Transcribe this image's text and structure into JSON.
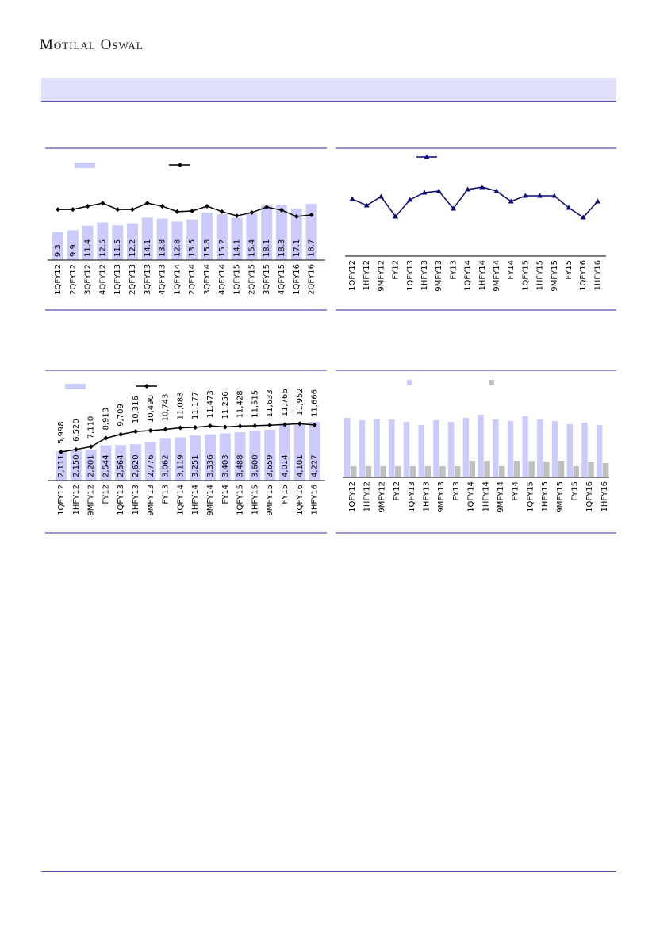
{
  "header": {
    "brand": "Motilal Oswal"
  },
  "colors": {
    "accent": "#5a50b4",
    "bar": "#ccccfc",
    "bar_grey": "#c0c0c0",
    "line_black": "#000000",
    "line_navy": "#0a0a78"
  },
  "chart_data": [
    {
      "type": "bar",
      "categories": [
        "1QFY12",
        "2QFY12",
        "3QFY12",
        "4QFY12",
        "1QFY13",
        "2QFY13",
        "3QFY13",
        "4QFY13",
        "1QFY14",
        "2QFY14",
        "3QFY14",
        "4QFY14",
        "1QFY15",
        "2QFY15",
        "3QFY15",
        "4QFY15",
        "1QFY16",
        "2QFY16"
      ],
      "series": [
        {
          "name": "bars",
          "kind": "bar",
          "values": [
            9.3,
            9.9,
            11.4,
            12.5,
            11.5,
            12.2,
            14.1,
            13.8,
            12.8,
            13.5,
            15.8,
            15.2,
            14.1,
            15.4,
            18.1,
            18.3,
            17.1,
            18.7
          ],
          "labels": [
            "9.3",
            "9.9",
            "11.4",
            "12.5",
            "11.5",
            "12.2",
            "14.1",
            "13.8",
            "12.8",
            "13.5",
            "15.8",
            "15.2",
            "14.1",
            "15.4",
            "18.1",
            "18.3",
            "17.1",
            "18.7"
          ]
        },
        {
          "name": "line",
          "kind": "line",
          "values": [
            16.8,
            16.8,
            17.9,
            18.9,
            16.8,
            16.8,
            18.9,
            17.9,
            16.1,
            16.3,
            17.9,
            16.1,
            14.7,
            15.8,
            17.6,
            16.6,
            14.5,
            15.0
          ]
        }
      ],
      "legend": "top-left",
      "grid": false
    },
    {
      "type": "line",
      "categories": [
        "1QFY12",
        "1HFY12",
        "9MFY12",
        "FY12",
        "1QFY13",
        "1HFY13",
        "9MFY13",
        "FY13",
        "1QFY14",
        "1HFY14",
        "9MFY14",
        "FY14",
        "1QFY15",
        "1HFY15",
        "9MFY15",
        "FY15",
        "1QFY16",
        "1HFY16"
      ],
      "series": [
        {
          "name": "line",
          "values": [
            72,
            64,
            75,
            50,
            71,
            80,
            82,
            60,
            84,
            87,
            82,
            69,
            76,
            76,
            76,
            61,
            49,
            69
          ]
        }
      ],
      "ylim": [
        0,
        100
      ],
      "legend": "top-center",
      "grid": false
    },
    {
      "type": "bar",
      "categories": [
        "1QFY12",
        "1HFY12",
        "9MFY12",
        "FY12",
        "1QFY13",
        "1HFY13",
        "9MFY13",
        "FY13",
        "1QFY14",
        "1HFY14",
        "9MFY14",
        "FY14",
        "1QFY15",
        "1HFY15",
        "9MFY15",
        "FY15",
        "1QFY16",
        "1HFY16"
      ],
      "series": [
        {
          "name": "bars",
          "kind": "bar",
          "values": [
            2111,
            2150,
            2201,
            2544,
            2564,
            2620,
            2776,
            3062,
            3119,
            3251,
            3336,
            3403,
            3488,
            3600,
            3659,
            4014,
            4101,
            4227
          ],
          "labels": [
            "2,111",
            "2,150",
            "2,201",
            "2,544",
            "2,564",
            "2,620",
            "2,776",
            "3,062",
            "3,119",
            "3,251",
            "3,336",
            "3,403",
            "3,488",
            "3,600",
            "3,659",
            "4,014",
            "4,101",
            "4,227"
          ]
        },
        {
          "name": "line",
          "kind": "line",
          "values": [
            5998,
            6520,
            7110,
            8913,
            9709,
            10316,
            10490,
            10743,
            11088,
            11177,
            11473,
            11256,
            11428,
            11515,
            11633,
            11766,
            11952,
            11666
          ],
          "labels": [
            "5,998",
            "6,520",
            "7,110",
            "8,913",
            "9,709",
            "10,316",
            "10,490",
            "10,743",
            "11,088",
            "11,177",
            "11,473",
            "11,256",
            "11,428",
            "11,515",
            "11,633",
            "11,766",
            "11,952",
            "11,666"
          ]
        }
      ],
      "legend": "top-left",
      "grid": false
    },
    {
      "type": "bar",
      "categories": [
        "1QFY12",
        "1HFY12",
        "9MFY12",
        "FY12",
        "1QFY13",
        "1HFY13",
        "9MFY13",
        "FY13",
        "1QFY14",
        "1HFY14",
        "9MFY14",
        "FY14",
        "1QFY15",
        "1HFY15",
        "9MFY15",
        "FY15",
        "1QFY16",
        "1HFY16"
      ],
      "series": [
        {
          "name": "series-1",
          "values": [
            75,
            72,
            74,
            73,
            70,
            66,
            72,
            70,
            75,
            79,
            73,
            71,
            77,
            73,
            71,
            67,
            69,
            66
          ]
        },
        {
          "name": "series-2",
          "values": [
            14,
            14,
            14,
            14,
            14,
            14,
            14,
            14,
            21,
            21,
            14,
            21,
            21,
            20,
            21,
            14,
            19,
            18
          ]
        }
      ],
      "legend": "top-center",
      "grid": false
    }
  ]
}
